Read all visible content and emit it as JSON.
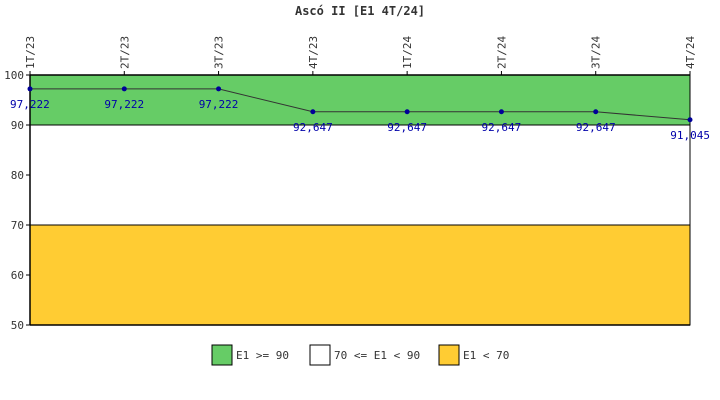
{
  "chart_data": {
    "type": "line",
    "title": "Ascó II [E1 4T/24]",
    "categories": [
      "1T/23",
      "2T/23",
      "3T/23",
      "4T/23",
      "1T/24",
      "2T/24",
      "3T/24",
      "4T/24"
    ],
    "series": [
      {
        "values": [
          97.222,
          97.222,
          97.222,
          92.647,
          92.647,
          92.647,
          92.647,
          91.045
        ],
        "labels": [
          "97,222",
          "97,222",
          "97,222",
          "92,647",
          "92,647",
          "92,647",
          "92,647",
          "91,045"
        ],
        "color": "#000099"
      }
    ],
    "ylim": [
      50,
      100
    ],
    "yticks": [
      50,
      60,
      70,
      80,
      90,
      100
    ],
    "bands": [
      {
        "from": 90,
        "to": 100,
        "color": "#66cc66",
        "label": "E1 >= 90"
      },
      {
        "from": 70,
        "to": 90,
        "color": "#ffffff",
        "label": "70 <= E1 < 90"
      },
      {
        "from": 50,
        "to": 70,
        "color": "#ffcc33",
        "label": "E1 < 70"
      }
    ],
    "legend_position": "bottom",
    "grid": false
  }
}
